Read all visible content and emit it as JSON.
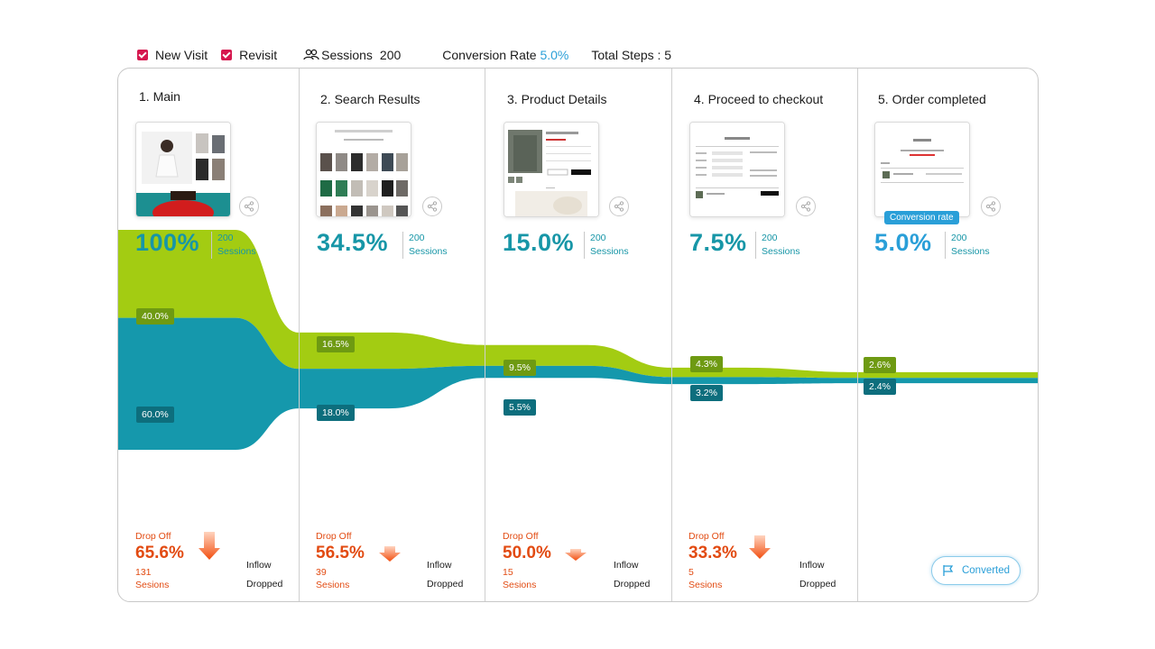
{
  "topbar": {
    "new_visit_label": "New Visit",
    "revisit_label": "Revisit",
    "sessions_label": "Sessions",
    "sessions_value": "200",
    "conversion_rate_label": "Conversion Rate",
    "conversion_rate_value": "5.0%",
    "total_steps_label": "Total Steps : 5"
  },
  "colors": {
    "new_visit": "#a3cc12",
    "revisit": "#1598ac",
    "drop": "#e24b12",
    "accent": "#2a9fd8",
    "checkbox": "#d6184f"
  },
  "steps": [
    {
      "title": "1. Main",
      "pct": "100%",
      "sessions_num": "200",
      "sessions_label": "Sessions",
      "drop_off_label": "Drop Off",
      "drop_off_pct": "65.6%",
      "drop_off_count": "131",
      "drop_off_unit": "Sesions",
      "inflow_label": "Inflow",
      "dropped_label": "Dropped"
    },
    {
      "title": "2. Search Results",
      "pct": "34.5%",
      "sessions_num": "200",
      "sessions_label": "Sessions",
      "drop_off_label": "Drop Off",
      "drop_off_pct": "56.5%",
      "drop_off_count": "39",
      "drop_off_unit": "Sesions",
      "inflow_label": "Inflow",
      "dropped_label": "Dropped"
    },
    {
      "title": "3. Product Details",
      "pct": "15.0%",
      "sessions_num": "200",
      "sessions_label": "Sessions",
      "drop_off_label": "Drop Off",
      "drop_off_pct": "50.0%",
      "drop_off_count": "15",
      "drop_off_unit": "Sesions",
      "inflow_label": "Inflow",
      "dropped_label": "Dropped"
    },
    {
      "title": "4. Proceed to checkout",
      "pct": "7.5%",
      "sessions_num": "200",
      "sessions_label": "Sessions",
      "drop_off_label": "Drop Off",
      "drop_off_pct": "33.3%",
      "drop_off_count": "5",
      "drop_off_unit": "Sesions",
      "inflow_label": "Inflow",
      "dropped_label": "Dropped"
    },
    {
      "title": "5. Order completed",
      "pct": "5.0%",
      "sessions_num": "200",
      "sessions_label": "Sessions",
      "badge": "Conversion rate",
      "converted_label": "Converted"
    }
  ],
  "chart_data": {
    "type": "area",
    "categories": [
      "1. Main",
      "2. Search Results",
      "3. Product Details",
      "4. Proceed to checkout",
      "5. Order completed"
    ],
    "series": [
      {
        "name": "New Visit",
        "values": [
          40.0,
          16.5,
          9.5,
          4.3,
          2.6
        ],
        "labels": [
          "40.0%",
          "16.5%",
          "9.5%",
          "4.3%",
          "2.6%"
        ]
      },
      {
        "name": "Revisit",
        "values": [
          60.0,
          18.0,
          5.5,
          3.2,
          2.4
        ],
        "labels": [
          "60.0%",
          "18.0%",
          "5.5%",
          "3.2%",
          "2.4%"
        ]
      }
    ],
    "stacked": true,
    "legend": "top-left",
    "grid": false
  }
}
